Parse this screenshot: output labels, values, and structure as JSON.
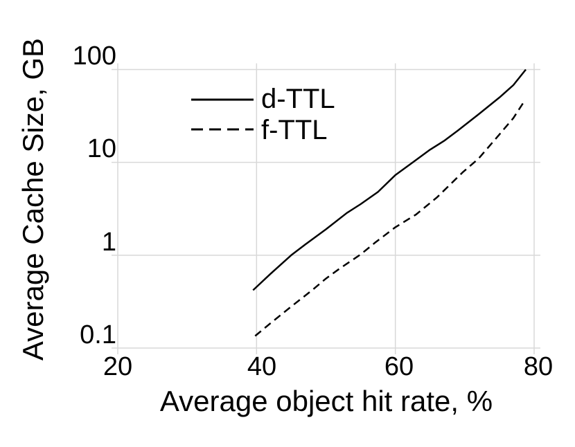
{
  "figure": {
    "background": "#ffffff",
    "text_color": "#000000"
  },
  "chart_data": {
    "type": "line",
    "title": "",
    "xlabel": "Average object hit rate, %",
    "ylabel": "Average Cache Size, GB",
    "grid": true,
    "gridline_color": "#d8d8d8",
    "line_color": "#000000",
    "x_axis": {
      "scale": "linear",
      "min": 20,
      "max": 80,
      "ticks": [
        20,
        40,
        60,
        80
      ],
      "tick_labels": [
        "20",
        "40",
        "60",
        "80"
      ]
    },
    "y_axis": {
      "scale": "log",
      "min": 0.1,
      "max": 100,
      "unit": "GB",
      "ticks": [
        100,
        10,
        1,
        0.1
      ],
      "tick_labels": [
        "100",
        "10",
        "1",
        "0.1"
      ]
    },
    "legend": {
      "position": "top-left-inside",
      "entries": [
        "d-TTL",
        "f-TTL"
      ]
    },
    "series": [
      {
        "name": "d-TTL",
        "line_style": "solid",
        "points": [
          [
            39.5,
            0.42
          ],
          [
            42,
            0.63
          ],
          [
            45,
            1.0
          ],
          [
            47,
            1.3
          ],
          [
            50,
            1.9
          ],
          [
            53,
            2.85
          ],
          [
            55,
            3.55
          ],
          [
            57.5,
            4.8
          ],
          [
            60,
            7.3
          ],
          [
            62.5,
            10
          ],
          [
            65,
            13.7
          ],
          [
            67,
            17
          ],
          [
            69,
            22
          ],
          [
            72,
            33
          ],
          [
            75,
            50
          ],
          [
            77,
            68
          ],
          [
            78.8,
            100
          ]
        ]
      },
      {
        "name": "f-TTL",
        "line_style": "dashed",
        "points": [
          [
            39.8,
            0.135
          ],
          [
            42,
            0.185
          ],
          [
            45,
            0.28
          ],
          [
            48,
            0.42
          ],
          [
            50,
            0.56
          ],
          [
            52,
            0.72
          ],
          [
            55,
            1.02
          ],
          [
            57,
            1.35
          ],
          [
            60,
            2.0
          ],
          [
            63,
            2.75
          ],
          [
            66,
            4.2
          ],
          [
            69.7,
            7.8
          ],
          [
            72,
            11
          ],
          [
            75,
            20
          ],
          [
            77,
            30
          ],
          [
            78.7,
            47
          ]
        ]
      }
    ]
  }
}
